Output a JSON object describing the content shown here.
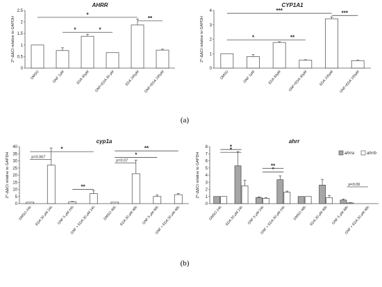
{
  "panel_labels": [
    "(a)",
    "(b)"
  ],
  "chart_data": [
    {
      "type": "bar",
      "title": "AHRR",
      "ylabel": "2^-ΔΔCt relative to GAPDH",
      "ylim": [
        0,
        2.5
      ],
      "yticks": [
        "0",
        "0.5",
        "1",
        "1.5",
        "2",
        "2.5"
      ],
      "categories": [
        "DMSO",
        "GNF 1μM",
        "EDA 30μM",
        "GNF+EDA 30 μM",
        "EDA 100μM",
        "GNF+EDA 100μM"
      ],
      "values": [
        1.0,
        0.76,
        1.38,
        0.67,
        1.87,
        0.78
      ],
      "errors": [
        0,
        0.12,
        0.09,
        0,
        0.25,
        0.04
      ],
      "annotations": [
        {
          "from": 0,
          "to": 4,
          "label": "*"
        },
        {
          "from": 1,
          "to": 2,
          "label": "*"
        },
        {
          "from": 2,
          "to": 3,
          "label": "*"
        },
        {
          "from": 4,
          "to": 5,
          "label": "**"
        }
      ]
    },
    {
      "type": "bar",
      "title": "CYP1A1",
      "ylabel": "2^-ΔΔCt relative to GAPDH",
      "ylim": [
        0,
        4
      ],
      "yticks": [
        "0",
        "1",
        "2",
        "3",
        "4"
      ],
      "categories": [
        "DMSO",
        "GNF 1μM",
        "EDA 30μM",
        "GNF+EDA 30μM",
        "EDA 100μM",
        "GNF+EDA 100μM"
      ],
      "values": [
        1.0,
        0.8,
        1.78,
        0.55,
        3.42,
        0.52
      ],
      "errors": [
        0,
        0.13,
        0.05,
        0.03,
        0.13,
        0.03
      ],
      "annotations": [
        {
          "from": 0,
          "to": 4,
          "label": "***"
        },
        {
          "from": 0,
          "to": 2,
          "label": "*"
        },
        {
          "from": 2,
          "to": 3,
          "label": "**"
        },
        {
          "from": 4,
          "to": 5,
          "label": "***"
        }
      ]
    },
    {
      "type": "bar",
      "title": "cyp1a",
      "ylabel": "2^-ΔΔCt relative to GAPDH",
      "ylim": [
        0,
        40
      ],
      "yticks": [
        "0",
        "5",
        "10",
        "15",
        "20",
        "25",
        "30",
        "35",
        "40"
      ],
      "categories": [
        "DMSO 24h",
        "EDA 30 μM 24h",
        "GNF 5 μM 24h",
        "GNF + EDA 30 μM 24h",
        "DMSO 48h",
        "EDA 30 μM 48h",
        "GNF 5 μM 48h",
        "GNF + EDA 30 μM 48h"
      ],
      "values": [
        1.0,
        27.0,
        1.2,
        7.0,
        1.0,
        21.0,
        5.0,
        6.3
      ],
      "errors": [
        0,
        12.0,
        0.3,
        2.2,
        0,
        9.5,
        1.0,
        0.8
      ],
      "annotations": [
        {
          "from": 0,
          "to": 1,
          "label": "p=0.067"
        },
        {
          "from": 0,
          "to": 3,
          "label": "*"
        },
        {
          "from": 2,
          "to": 3,
          "label": "**"
        },
        {
          "from": 4,
          "to": 7,
          "label": "**"
        },
        {
          "from": 4,
          "to": 5,
          "label": "p=0.07"
        },
        {
          "from": 4,
          "to": 6,
          "label": "*"
        }
      ]
    },
    {
      "type": "bar",
      "title": "ahrr",
      "ylabel": "2^-ΔΔCt relative to GAPDH",
      "ylim": [
        0,
        8
      ],
      "yticks": [
        "0",
        "1",
        "2",
        "3",
        "4",
        "5",
        "6",
        "7",
        "8"
      ],
      "categories": [
        "DMSO 24h",
        "EDA 30 μM 24h",
        "GNF 5 μM 24h",
        "GNF + EDA 30 μM 24h",
        "DMSO 48h",
        "EDA 30 μM 48h",
        "GNF 5 μM 48h",
        "GNF + EDA 30 μM 48h"
      ],
      "legend": [
        "ahrra",
        "ahrrb"
      ],
      "series": [
        {
          "name": "ahrra",
          "values": [
            1.0,
            5.3,
            0.85,
            3.35,
            1.0,
            2.6,
            0.5,
            0.0
          ],
          "errors": [
            0,
            2.0,
            0.1,
            0.55,
            0,
            0.8,
            0.15,
            0
          ]
        },
        {
          "name": "ahrrb",
          "values": [
            1.0,
            2.5,
            0.75,
            1.6,
            1.0,
            0.85,
            0.1,
            0.0
          ],
          "errors": [
            0,
            0.8,
            0.1,
            0.15,
            0,
            0.3,
            0.05,
            0
          ]
        }
      ],
      "annotations": [
        {
          "from": 0,
          "to": 1,
          "label": "*"
        },
        {
          "from": 0,
          "to": 1,
          "label": "*"
        },
        {
          "from": 2,
          "to": 3,
          "label": "*"
        },
        {
          "from": 2,
          "to": 3,
          "label": "**"
        },
        {
          "from": 6,
          "to": 7,
          "label": "p=0.06"
        }
      ]
    }
  ]
}
